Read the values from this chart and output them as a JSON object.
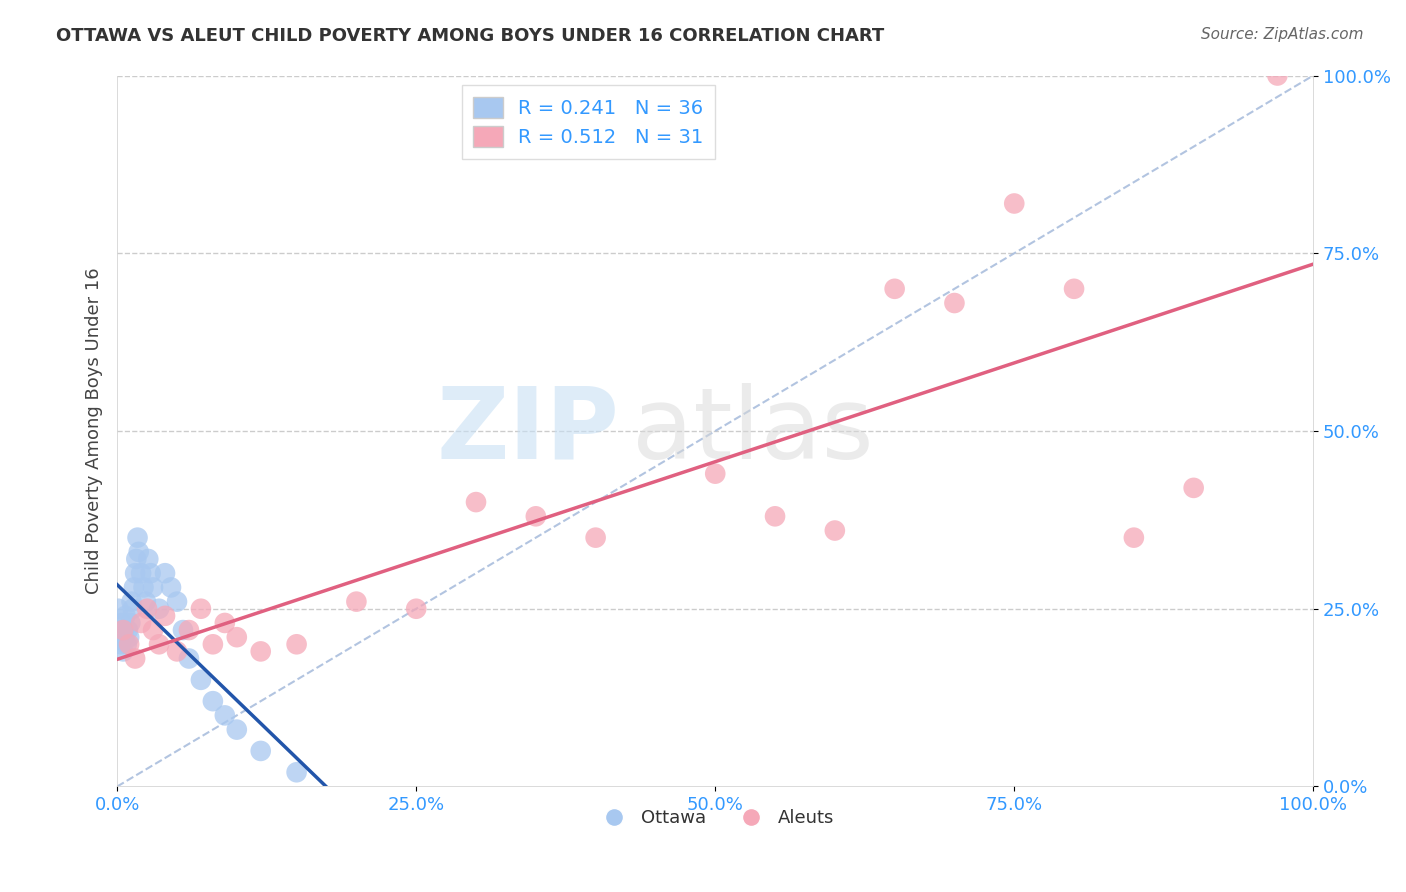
{
  "title": "OTTAWA VS ALEUT CHILD POVERTY AMONG BOYS UNDER 16 CORRELATION CHART",
  "source": "Source: ZipAtlas.com",
  "ylabel": "Child Poverty Among Boys Under 16",
  "ottawa_R": 0.241,
  "ottawa_N": 36,
  "aleuts_R": 0.512,
  "aleuts_N": 31,
  "ottawa_color": "#a8c8f0",
  "aleuts_color": "#f5a8b8",
  "ottawa_line_color": "#2255aa",
  "aleuts_line_color": "#e06080",
  "diag_line_color": "#aabedd",
  "background_color": "#ffffff",
  "grid_color": "#cccccc",
  "ottawa_x": [
    0.001,
    0.002,
    0.003,
    0.004,
    0.005,
    0.006,
    0.007,
    0.008,
    0.009,
    0.01,
    0.011,
    0.012,
    0.013,
    0.014,
    0.015,
    0.016,
    0.017,
    0.018,
    0.02,
    0.022,
    0.024,
    0.026,
    0.028,
    0.03,
    0.035,
    0.04,
    0.045,
    0.05,
    0.055,
    0.06,
    0.07,
    0.08,
    0.09,
    0.1,
    0.12,
    0.15
  ],
  "ottawa_y": [
    0.25,
    0.22,
    0.2,
    0.23,
    0.19,
    0.21,
    0.24,
    0.2,
    0.22,
    0.21,
    0.23,
    0.26,
    0.25,
    0.28,
    0.3,
    0.32,
    0.35,
    0.33,
    0.3,
    0.28,
    0.26,
    0.32,
    0.3,
    0.28,
    0.25,
    0.3,
    0.28,
    0.26,
    0.22,
    0.18,
    0.15,
    0.12,
    0.1,
    0.08,
    0.05,
    0.02
  ],
  "aleuts_x": [
    0.005,
    0.01,
    0.015,
    0.02,
    0.025,
    0.03,
    0.035,
    0.04,
    0.05,
    0.06,
    0.07,
    0.08,
    0.09,
    0.1,
    0.12,
    0.15,
    0.2,
    0.25,
    0.3,
    0.35,
    0.4,
    0.5,
    0.55,
    0.6,
    0.65,
    0.7,
    0.75,
    0.8,
    0.85,
    0.9,
    0.97
  ],
  "aleuts_y": [
    0.22,
    0.2,
    0.18,
    0.23,
    0.25,
    0.22,
    0.2,
    0.24,
    0.19,
    0.22,
    0.25,
    0.2,
    0.23,
    0.21,
    0.19,
    0.2,
    0.26,
    0.25,
    0.4,
    0.38,
    0.35,
    0.44,
    0.38,
    0.36,
    0.7,
    0.68,
    0.82,
    0.7,
    0.35,
    0.42,
    1.0
  ],
  "xlim": [
    0,
    1
  ],
  "ylim": [
    0,
    1
  ],
  "xticks": [
    0.0,
    0.25,
    0.5,
    0.75,
    1.0
  ],
  "yticks": [
    0.0,
    0.25,
    0.5,
    0.75,
    1.0
  ],
  "xtick_labels": [
    "0.0%",
    "25.0%",
    "50.0%",
    "75.0%",
    "100.0%"
  ],
  "ytick_labels": [
    "0.0%",
    "25.0%",
    "50.0%",
    "75.0%",
    "100.0%"
  ]
}
